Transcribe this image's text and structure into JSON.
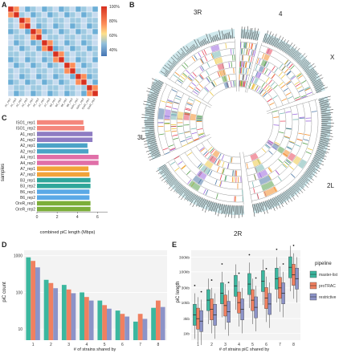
{
  "panels": {
    "a": "A",
    "b": "B",
    "c": "C",
    "d": "D",
    "e": "E"
  },
  "heatmap": {
    "samples": [
      "A1_rep1",
      "A1_rep2",
      "A2_rep1",
      "A2_rep2",
      "A4_rep1",
      "A4_rep2",
      "A7_rep1",
      "A7_rep2",
      "B3_rep1",
      "B3_rep2",
      "B6_rep1",
      "B6_rep2",
      "ISO1_rep1",
      "ISO1_rep2",
      "OreR_rep1",
      "OreR_rep2"
    ],
    "scale_labels": [
      "100%",
      "80%",
      "60%",
      "40%"
    ],
    "scale_values": [
      100,
      80,
      60,
      40
    ],
    "colors": {
      "high": "#d7301f",
      "mid": "#fee08b",
      "low": "#4575b4"
    }
  },
  "circos": {
    "arm_labels": {
      "3R": "3R",
      "2L_top": "4",
      "X": "X",
      "2L": "2L",
      "2R": "2R",
      "3L": "3L"
    },
    "track_colors": [
      "#e84a5f",
      "#f28e2b",
      "#59a14f",
      "#4e79a7",
      "#9c6ade",
      "#76b7b2",
      "#edc948"
    ],
    "density_color": "#2b2b2b",
    "density_fill": "#cfe8ec"
  },
  "chart_data": [
    {
      "type": "bar",
      "panel": "C",
      "orientation": "horizontal",
      "categories": [
        "ISO1_rep1",
        "ISO1_rep2",
        "A1_rep1",
        "A1_rep2",
        "A2_rep1",
        "A2_rep2",
        "A4_rep1",
        "A4_rep2",
        "A7_rep1",
        "A7_rep2",
        "B3_rep1",
        "B3_rep2",
        "B6_rep1",
        "B6_rep2",
        "OreR_rep1",
        "OreR_rep2"
      ],
      "values": [
        4.6,
        4.7,
        5.5,
        5.5,
        5.0,
        5.1,
        6.1,
        6.1,
        5.1,
        5.2,
        5.3,
        5.3,
        5.2,
        5.2,
        5.3,
        5.3
      ],
      "colors": [
        "#f4877c",
        "#f4877c",
        "#8e7cc3",
        "#8e7cc3",
        "#4ba3c7",
        "#4ba3c7",
        "#e06fa8",
        "#e06fa8",
        "#f2a33a",
        "#f2a33a",
        "#2fa69a",
        "#2fa69a",
        "#5aa9e6",
        "#5aa9e6",
        "#7cae3a",
        "#7cae3a"
      ],
      "xlabel": "combined piC length (Mbps)",
      "ylabel": "samples",
      "xlim": [
        0,
        7
      ],
      "xticks": [
        0,
        2,
        4,
        6
      ]
    },
    {
      "type": "bar",
      "panel": "D",
      "categories": [
        "1",
        "2",
        "3",
        "4",
        "5",
        "6",
        "7",
        "8"
      ],
      "series": [
        {
          "name": "master-list",
          "color": "#3bb79f",
          "values": [
            900,
            220,
            160,
            100,
            60,
            32,
            16,
            38
          ]
        },
        {
          "name": "proTRAC",
          "color": "#f08060",
          "values": [
            720,
            180,
            120,
            75,
            45,
            26,
            26,
            60
          ]
        },
        {
          "name": "restrictive",
          "color": "#8c93c8",
          "values": [
            480,
            130,
            95,
            60,
            36,
            22,
            19,
            40
          ]
        }
      ],
      "xlabel": "# of strains shared by",
      "ylabel": "piC count",
      "yscale": "log",
      "yticks": [
        "10",
        "100",
        "1000"
      ]
    },
    {
      "type": "box",
      "panel": "E",
      "categories": [
        "1",
        "2",
        "3",
        "4",
        "5",
        "6",
        "7",
        "8"
      ],
      "legend_title": "pipeline",
      "series": [
        {
          "name": "master-list",
          "color": "#3bb79f",
          "medians_kb": [
            4,
            12,
            20,
            35,
            40,
            50,
            60,
            140
          ]
        },
        {
          "name": "proTRAC",
          "color": "#f08060",
          "medians_kb": [
            3,
            6,
            8,
            10,
            12,
            14,
            30,
            80
          ]
        },
        {
          "name": "restrictive",
          "color": "#8c93c8",
          "medians_kb": [
            2.5,
            4,
            5,
            6,
            7,
            9,
            20,
            60
          ]
        }
      ],
      "xlabel": "# of strains piC shared by",
      "ylabel": "piC length",
      "yscale": "log",
      "yticks": [
        "1kb",
        "3kb",
        "10kb",
        "30kb",
        "100kb",
        "300kb"
      ],
      "yticks_kb": [
        1,
        3,
        10,
        30,
        100,
        300
      ]
    }
  ]
}
